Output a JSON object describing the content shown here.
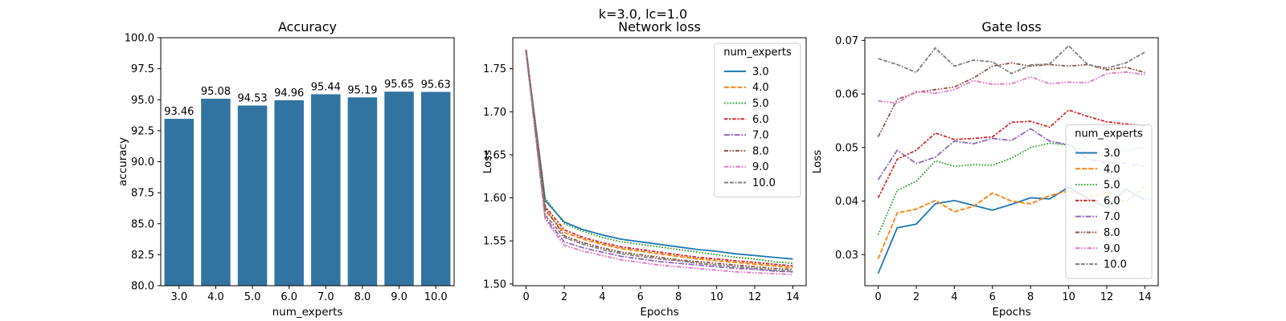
{
  "figure": {
    "suptitle": "k=3.0, lc=1.0",
    "background_color": "#ffffff",
    "text_color": "#000000"
  },
  "chart_data": [
    {
      "id": "accuracy",
      "type": "bar",
      "title": "Accuracy",
      "xlabel": "num_experts",
      "ylabel": "accuracy",
      "categories": [
        "3.0",
        "4.0",
        "5.0",
        "6.0",
        "7.0",
        "8.0",
        "9.0",
        "10.0"
      ],
      "values": [
        93.46,
        95.08,
        94.53,
        94.96,
        95.44,
        95.19,
        95.65,
        95.63
      ],
      "value_labels": [
        "93.46",
        "95.08",
        "94.53",
        "94.96",
        "95.44",
        "95.19",
        "95.65",
        "95.63"
      ],
      "bar_color": "#3274a1",
      "ylim": [
        80.0,
        100.0
      ],
      "yticks": [
        80.0,
        82.5,
        85.0,
        87.5,
        90.0,
        92.5,
        95.0,
        97.5,
        100.0
      ],
      "ytick_labels": [
        "80.0",
        "82.5",
        "85.0",
        "87.5",
        "90.0",
        "92.5",
        "95.0",
        "97.5",
        "100.0"
      ],
      "grid": false,
      "legend": null
    },
    {
      "id": "network-loss",
      "type": "line",
      "title": "Network loss",
      "xlabel": "Epochs",
      "ylabel": "Loss",
      "x": [
        0,
        1,
        2,
        3,
        4,
        5,
        6,
        7,
        8,
        9,
        10,
        11,
        12,
        13,
        14
      ],
      "xlim": [
        -0.7,
        14.7
      ],
      "xticks": [
        0,
        2,
        4,
        6,
        8,
        10,
        12,
        14
      ],
      "xtick_labels": [
        "0",
        "2",
        "4",
        "6",
        "8",
        "10",
        "12",
        "14"
      ],
      "ylim": [
        1.498,
        1.786
      ],
      "yticks": [
        1.5,
        1.55,
        1.6,
        1.65,
        1.7,
        1.75
      ],
      "ytick_labels": [
        "1.50",
        "1.55",
        "1.60",
        "1.65",
        "1.70",
        "1.75"
      ],
      "grid": false,
      "legend": {
        "title": "num_experts",
        "loc": "upper-right"
      },
      "series": [
        {
          "name": "3.0",
          "color": "#1f77b4",
          "dash": "solid",
          "values": [
            1.771,
            1.597,
            1.572,
            1.563,
            1.557,
            1.552,
            1.549,
            1.546,
            1.543,
            1.54,
            1.538,
            1.535,
            1.533,
            1.531,
            1.529
          ]
        },
        {
          "name": "4.0",
          "color": "#ff7f0e",
          "dash": "dashed",
          "values": [
            1.772,
            1.585,
            1.56,
            1.552,
            1.546,
            1.541,
            1.538,
            1.535,
            1.532,
            1.529,
            1.527,
            1.525,
            1.523,
            1.521,
            1.519
          ]
        },
        {
          "name": "5.0",
          "color": "#2ca02c",
          "dash": "dotted",
          "values": [
            1.77,
            1.6,
            1.57,
            1.561,
            1.554,
            1.549,
            1.546,
            1.543,
            1.54,
            1.537,
            1.534,
            1.531,
            1.529,
            1.526,
            1.524
          ]
        },
        {
          "name": "6.0",
          "color": "#d62728",
          "dash": "dashdot1",
          "values": [
            1.772,
            1.59,
            1.563,
            1.554,
            1.548,
            1.543,
            1.54,
            1.537,
            1.534,
            1.531,
            1.529,
            1.527,
            1.525,
            1.523,
            1.521
          ]
        },
        {
          "name": "7.0",
          "color": "#9467bd",
          "dash": "dashdot2",
          "values": [
            1.769,
            1.577,
            1.549,
            1.542,
            1.537,
            1.532,
            1.529,
            1.526,
            1.524,
            1.522,
            1.52,
            1.518,
            1.517,
            1.515,
            1.514
          ]
        },
        {
          "name": "8.0",
          "color": "#8c564b",
          "dash": "dashdotdot1",
          "values": [
            1.771,
            1.588,
            1.556,
            1.548,
            1.542,
            1.537,
            1.534,
            1.531,
            1.528,
            1.526,
            1.524,
            1.522,
            1.52,
            1.518,
            1.517
          ]
        },
        {
          "name": "9.0",
          "color": "#e377c2",
          "dash": "dashdotdot2",
          "values": [
            1.768,
            1.575,
            1.545,
            1.538,
            1.533,
            1.528,
            1.525,
            1.522,
            1.52,
            1.518,
            1.516,
            1.514,
            1.513,
            1.512,
            1.511
          ]
        },
        {
          "name": "10.0",
          "color": "#7f7f7f",
          "dash": "dashdashdot",
          "values": [
            1.77,
            1.58,
            1.554,
            1.546,
            1.54,
            1.535,
            1.532,
            1.529,
            1.527,
            1.524,
            1.522,
            1.52,
            1.518,
            1.516,
            1.515
          ]
        }
      ]
    },
    {
      "id": "gate-loss",
      "type": "line",
      "title": "Gate loss",
      "xlabel": "Epochs",
      "ylabel": "Loss",
      "x": [
        0,
        1,
        2,
        3,
        4,
        5,
        6,
        7,
        8,
        9,
        10,
        11,
        12,
        13,
        14
      ],
      "xlim": [
        -0.7,
        14.7
      ],
      "xticks": [
        0,
        2,
        4,
        6,
        8,
        10,
        12,
        14
      ],
      "xtick_labels": [
        "0",
        "2",
        "4",
        "6",
        "8",
        "10",
        "12",
        "14"
      ],
      "ylim": [
        0.0242,
        0.0705
      ],
      "yticks": [
        0.03,
        0.04,
        0.05,
        0.06,
        0.07
      ],
      "ytick_labels": [
        "0.03",
        "0.04",
        "0.05",
        "0.06",
        "0.07"
      ],
      "grid": false,
      "legend": {
        "title": "num_experts",
        "loc": "lower-right"
      },
      "series": [
        {
          "name": "3.0",
          "color": "#1f77b4",
          "dash": "solid",
          "values": [
            0.0265,
            0.035,
            0.0357,
            0.0395,
            0.0401,
            0.0392,
            0.0383,
            0.0394,
            0.0406,
            0.0404,
            0.0426,
            0.0405,
            0.0388,
            0.0422,
            0.0402
          ]
        },
        {
          "name": "4.0",
          "color": "#ff7f0e",
          "dash": "dashed",
          "values": [
            0.0292,
            0.0378,
            0.0385,
            0.0401,
            0.038,
            0.039,
            0.0415,
            0.04,
            0.0395,
            0.041,
            0.0419,
            0.0408,
            0.0415,
            0.0398,
            0.0428
          ]
        },
        {
          "name": "5.0",
          "color": "#2ca02c",
          "dash": "dotted",
          "values": [
            0.0337,
            0.042,
            0.0437,
            0.0475,
            0.0465,
            0.0468,
            0.0467,
            0.048,
            0.05,
            0.0508,
            0.0505,
            0.049,
            0.0485,
            0.0495,
            0.05
          ]
        },
        {
          "name": "6.0",
          "color": "#d62728",
          "dash": "dashdot1",
          "values": [
            0.0406,
            0.0478,
            0.0495,
            0.0527,
            0.0515,
            0.0517,
            0.052,
            0.0547,
            0.0549,
            0.0538,
            0.057,
            0.0558,
            0.0548,
            0.0544,
            0.054
          ]
        },
        {
          "name": "7.0",
          "color": "#9467bd",
          "dash": "dashdot2",
          "values": [
            0.044,
            0.0495,
            0.047,
            0.0482,
            0.0512,
            0.0507,
            0.0517,
            0.0513,
            0.0535,
            0.0512,
            0.0505,
            0.0478,
            0.0472,
            0.047,
            0.0465
          ]
        },
        {
          "name": "8.0",
          "color": "#8c564b",
          "dash": "dashdotdot1",
          "values": [
            0.052,
            0.059,
            0.0603,
            0.0608,
            0.0613,
            0.063,
            0.0652,
            0.0658,
            0.0652,
            0.0655,
            0.0652,
            0.0655,
            0.0645,
            0.065,
            0.064
          ]
        },
        {
          "name": "9.0",
          "color": "#e377c2",
          "dash": "dashdotdot2",
          "values": [
            0.0587,
            0.0583,
            0.0605,
            0.0601,
            0.0608,
            0.0625,
            0.0618,
            0.0619,
            0.0632,
            0.0619,
            0.0622,
            0.0621,
            0.0638,
            0.0641,
            0.0636
          ]
        },
        {
          "name": "10.0",
          "color": "#7f7f7f",
          "dash": "dashdashdot",
          "values": [
            0.0666,
            0.0655,
            0.064,
            0.0686,
            0.0652,
            0.0663,
            0.066,
            0.0638,
            0.0654,
            0.0656,
            0.069,
            0.0655,
            0.0648,
            0.0658,
            0.0678
          ]
        }
      ]
    }
  ]
}
